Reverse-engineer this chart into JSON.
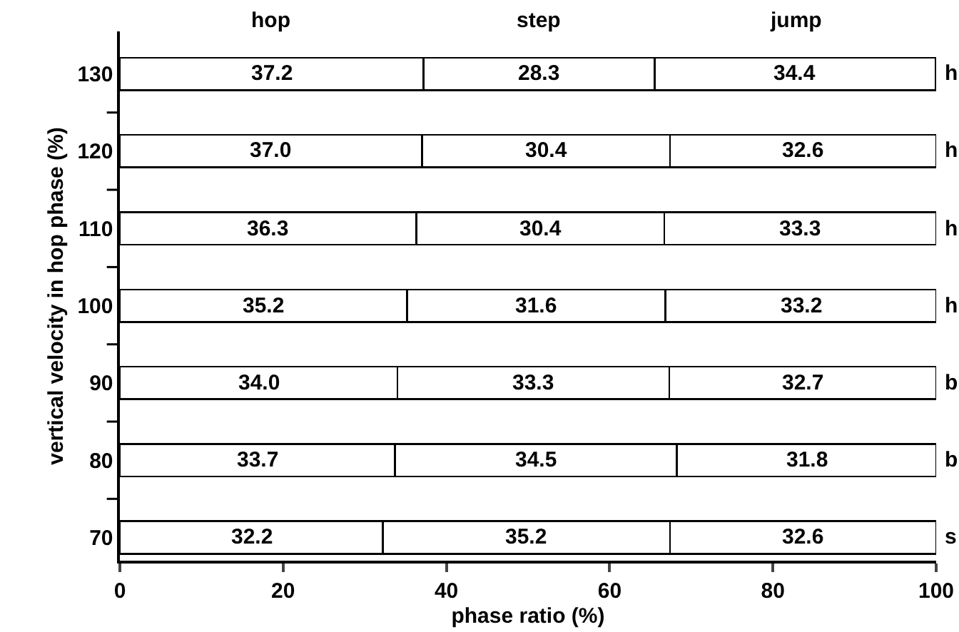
{
  "chart_data": {
    "type": "bar",
    "orientation": "horizontal",
    "stacked": true,
    "xlabel": "phase ratio (%)",
    "ylabel": "vertical velocity in hop phase (%)",
    "categories": [
      "130",
      "120",
      "110",
      "100",
      "90",
      "80",
      "70"
    ],
    "series": [
      {
        "name": "hop",
        "color": "#ffffff",
        "values": [
          37.2,
          37.0,
          36.3,
          35.2,
          34.0,
          33.7,
          32.2
        ],
        "value_labels": [
          "37.2",
          "37.0",
          "36.3",
          "35.2",
          "34.0",
          "33.7",
          "32.2"
        ]
      },
      {
        "name": "step",
        "color": "#ffffff",
        "values": [
          28.3,
          30.4,
          30.4,
          31.6,
          33.3,
          34.5,
          35.2
        ],
        "value_labels": [
          "28.3",
          "30.4",
          "30.4",
          "31.6",
          "33.3",
          "34.5",
          "35.2"
        ]
      },
      {
        "name": "jump",
        "color": "#ffffff",
        "values": [
          34.4,
          32.6,
          33.3,
          33.2,
          32.7,
          31.8,
          32.6
        ],
        "value_labels": [
          "34.4",
          "32.6",
          "33.3",
          "33.2",
          "32.7",
          "31.8",
          "32.6"
        ]
      }
    ],
    "xlim": [
      0,
      100
    ],
    "xticks": [
      0,
      20,
      40,
      60,
      80,
      100
    ],
    "legend": false,
    "grid": false,
    "annotations": [
      "h",
      "h",
      "h",
      "h",
      "b",
      "b",
      "s"
    ]
  }
}
